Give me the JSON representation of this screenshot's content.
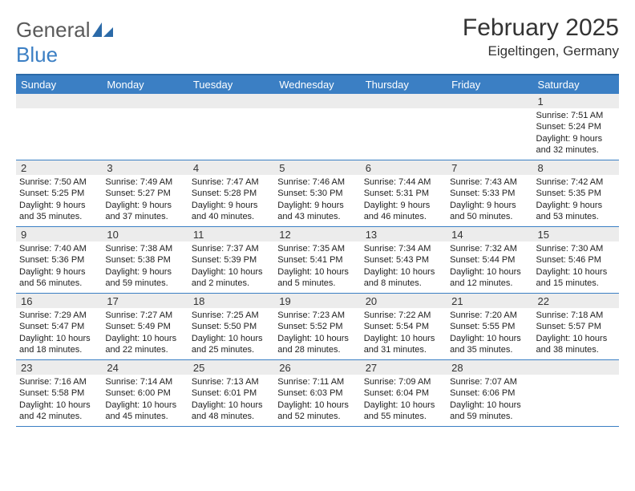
{
  "logo": {
    "word1": "General",
    "word2": "Blue"
  },
  "title": "February 2025",
  "location": "Eigeltingen, Germany",
  "colors": {
    "header_bg": "#3b7fc4",
    "header_text": "#ffffff",
    "border": "#3b7fc4",
    "daybar_bg": "#ececec",
    "text": "#222222"
  },
  "day_names": [
    "Sunday",
    "Monday",
    "Tuesday",
    "Wednesday",
    "Thursday",
    "Friday",
    "Saturday"
  ],
  "weeks": [
    [
      {
        "n": "",
        "sunrise": "",
        "sunset": "",
        "daylight": ""
      },
      {
        "n": "",
        "sunrise": "",
        "sunset": "",
        "daylight": ""
      },
      {
        "n": "",
        "sunrise": "",
        "sunset": "",
        "daylight": ""
      },
      {
        "n": "",
        "sunrise": "",
        "sunset": "",
        "daylight": ""
      },
      {
        "n": "",
        "sunrise": "",
        "sunset": "",
        "daylight": ""
      },
      {
        "n": "",
        "sunrise": "",
        "sunset": "",
        "daylight": ""
      },
      {
        "n": "1",
        "sunrise": "Sunrise: 7:51 AM",
        "sunset": "Sunset: 5:24 PM",
        "daylight": "Daylight: 9 hours and 32 minutes."
      }
    ],
    [
      {
        "n": "2",
        "sunrise": "Sunrise: 7:50 AM",
        "sunset": "Sunset: 5:25 PM",
        "daylight": "Daylight: 9 hours and 35 minutes."
      },
      {
        "n": "3",
        "sunrise": "Sunrise: 7:49 AM",
        "sunset": "Sunset: 5:27 PM",
        "daylight": "Daylight: 9 hours and 37 minutes."
      },
      {
        "n": "4",
        "sunrise": "Sunrise: 7:47 AM",
        "sunset": "Sunset: 5:28 PM",
        "daylight": "Daylight: 9 hours and 40 minutes."
      },
      {
        "n": "5",
        "sunrise": "Sunrise: 7:46 AM",
        "sunset": "Sunset: 5:30 PM",
        "daylight": "Daylight: 9 hours and 43 minutes."
      },
      {
        "n": "6",
        "sunrise": "Sunrise: 7:44 AM",
        "sunset": "Sunset: 5:31 PM",
        "daylight": "Daylight: 9 hours and 46 minutes."
      },
      {
        "n": "7",
        "sunrise": "Sunrise: 7:43 AM",
        "sunset": "Sunset: 5:33 PM",
        "daylight": "Daylight: 9 hours and 50 minutes."
      },
      {
        "n": "8",
        "sunrise": "Sunrise: 7:42 AM",
        "sunset": "Sunset: 5:35 PM",
        "daylight": "Daylight: 9 hours and 53 minutes."
      }
    ],
    [
      {
        "n": "9",
        "sunrise": "Sunrise: 7:40 AM",
        "sunset": "Sunset: 5:36 PM",
        "daylight": "Daylight: 9 hours and 56 minutes."
      },
      {
        "n": "10",
        "sunrise": "Sunrise: 7:38 AM",
        "sunset": "Sunset: 5:38 PM",
        "daylight": "Daylight: 9 hours and 59 minutes."
      },
      {
        "n": "11",
        "sunrise": "Sunrise: 7:37 AM",
        "sunset": "Sunset: 5:39 PM",
        "daylight": "Daylight: 10 hours and 2 minutes."
      },
      {
        "n": "12",
        "sunrise": "Sunrise: 7:35 AM",
        "sunset": "Sunset: 5:41 PM",
        "daylight": "Daylight: 10 hours and 5 minutes."
      },
      {
        "n": "13",
        "sunrise": "Sunrise: 7:34 AM",
        "sunset": "Sunset: 5:43 PM",
        "daylight": "Daylight: 10 hours and 8 minutes."
      },
      {
        "n": "14",
        "sunrise": "Sunrise: 7:32 AM",
        "sunset": "Sunset: 5:44 PM",
        "daylight": "Daylight: 10 hours and 12 minutes."
      },
      {
        "n": "15",
        "sunrise": "Sunrise: 7:30 AM",
        "sunset": "Sunset: 5:46 PM",
        "daylight": "Daylight: 10 hours and 15 minutes."
      }
    ],
    [
      {
        "n": "16",
        "sunrise": "Sunrise: 7:29 AM",
        "sunset": "Sunset: 5:47 PM",
        "daylight": "Daylight: 10 hours and 18 minutes."
      },
      {
        "n": "17",
        "sunrise": "Sunrise: 7:27 AM",
        "sunset": "Sunset: 5:49 PM",
        "daylight": "Daylight: 10 hours and 22 minutes."
      },
      {
        "n": "18",
        "sunrise": "Sunrise: 7:25 AM",
        "sunset": "Sunset: 5:50 PM",
        "daylight": "Daylight: 10 hours and 25 minutes."
      },
      {
        "n": "19",
        "sunrise": "Sunrise: 7:23 AM",
        "sunset": "Sunset: 5:52 PM",
        "daylight": "Daylight: 10 hours and 28 minutes."
      },
      {
        "n": "20",
        "sunrise": "Sunrise: 7:22 AM",
        "sunset": "Sunset: 5:54 PM",
        "daylight": "Daylight: 10 hours and 31 minutes."
      },
      {
        "n": "21",
        "sunrise": "Sunrise: 7:20 AM",
        "sunset": "Sunset: 5:55 PM",
        "daylight": "Daylight: 10 hours and 35 minutes."
      },
      {
        "n": "22",
        "sunrise": "Sunrise: 7:18 AM",
        "sunset": "Sunset: 5:57 PM",
        "daylight": "Daylight: 10 hours and 38 minutes."
      }
    ],
    [
      {
        "n": "23",
        "sunrise": "Sunrise: 7:16 AM",
        "sunset": "Sunset: 5:58 PM",
        "daylight": "Daylight: 10 hours and 42 minutes."
      },
      {
        "n": "24",
        "sunrise": "Sunrise: 7:14 AM",
        "sunset": "Sunset: 6:00 PM",
        "daylight": "Daylight: 10 hours and 45 minutes."
      },
      {
        "n": "25",
        "sunrise": "Sunrise: 7:13 AM",
        "sunset": "Sunset: 6:01 PM",
        "daylight": "Daylight: 10 hours and 48 minutes."
      },
      {
        "n": "26",
        "sunrise": "Sunrise: 7:11 AM",
        "sunset": "Sunset: 6:03 PM",
        "daylight": "Daylight: 10 hours and 52 minutes."
      },
      {
        "n": "27",
        "sunrise": "Sunrise: 7:09 AM",
        "sunset": "Sunset: 6:04 PM",
        "daylight": "Daylight: 10 hours and 55 minutes."
      },
      {
        "n": "28",
        "sunrise": "Sunrise: 7:07 AM",
        "sunset": "Sunset: 6:06 PM",
        "daylight": "Daylight: 10 hours and 59 minutes."
      },
      {
        "n": "",
        "sunrise": "",
        "sunset": "",
        "daylight": ""
      }
    ]
  ]
}
